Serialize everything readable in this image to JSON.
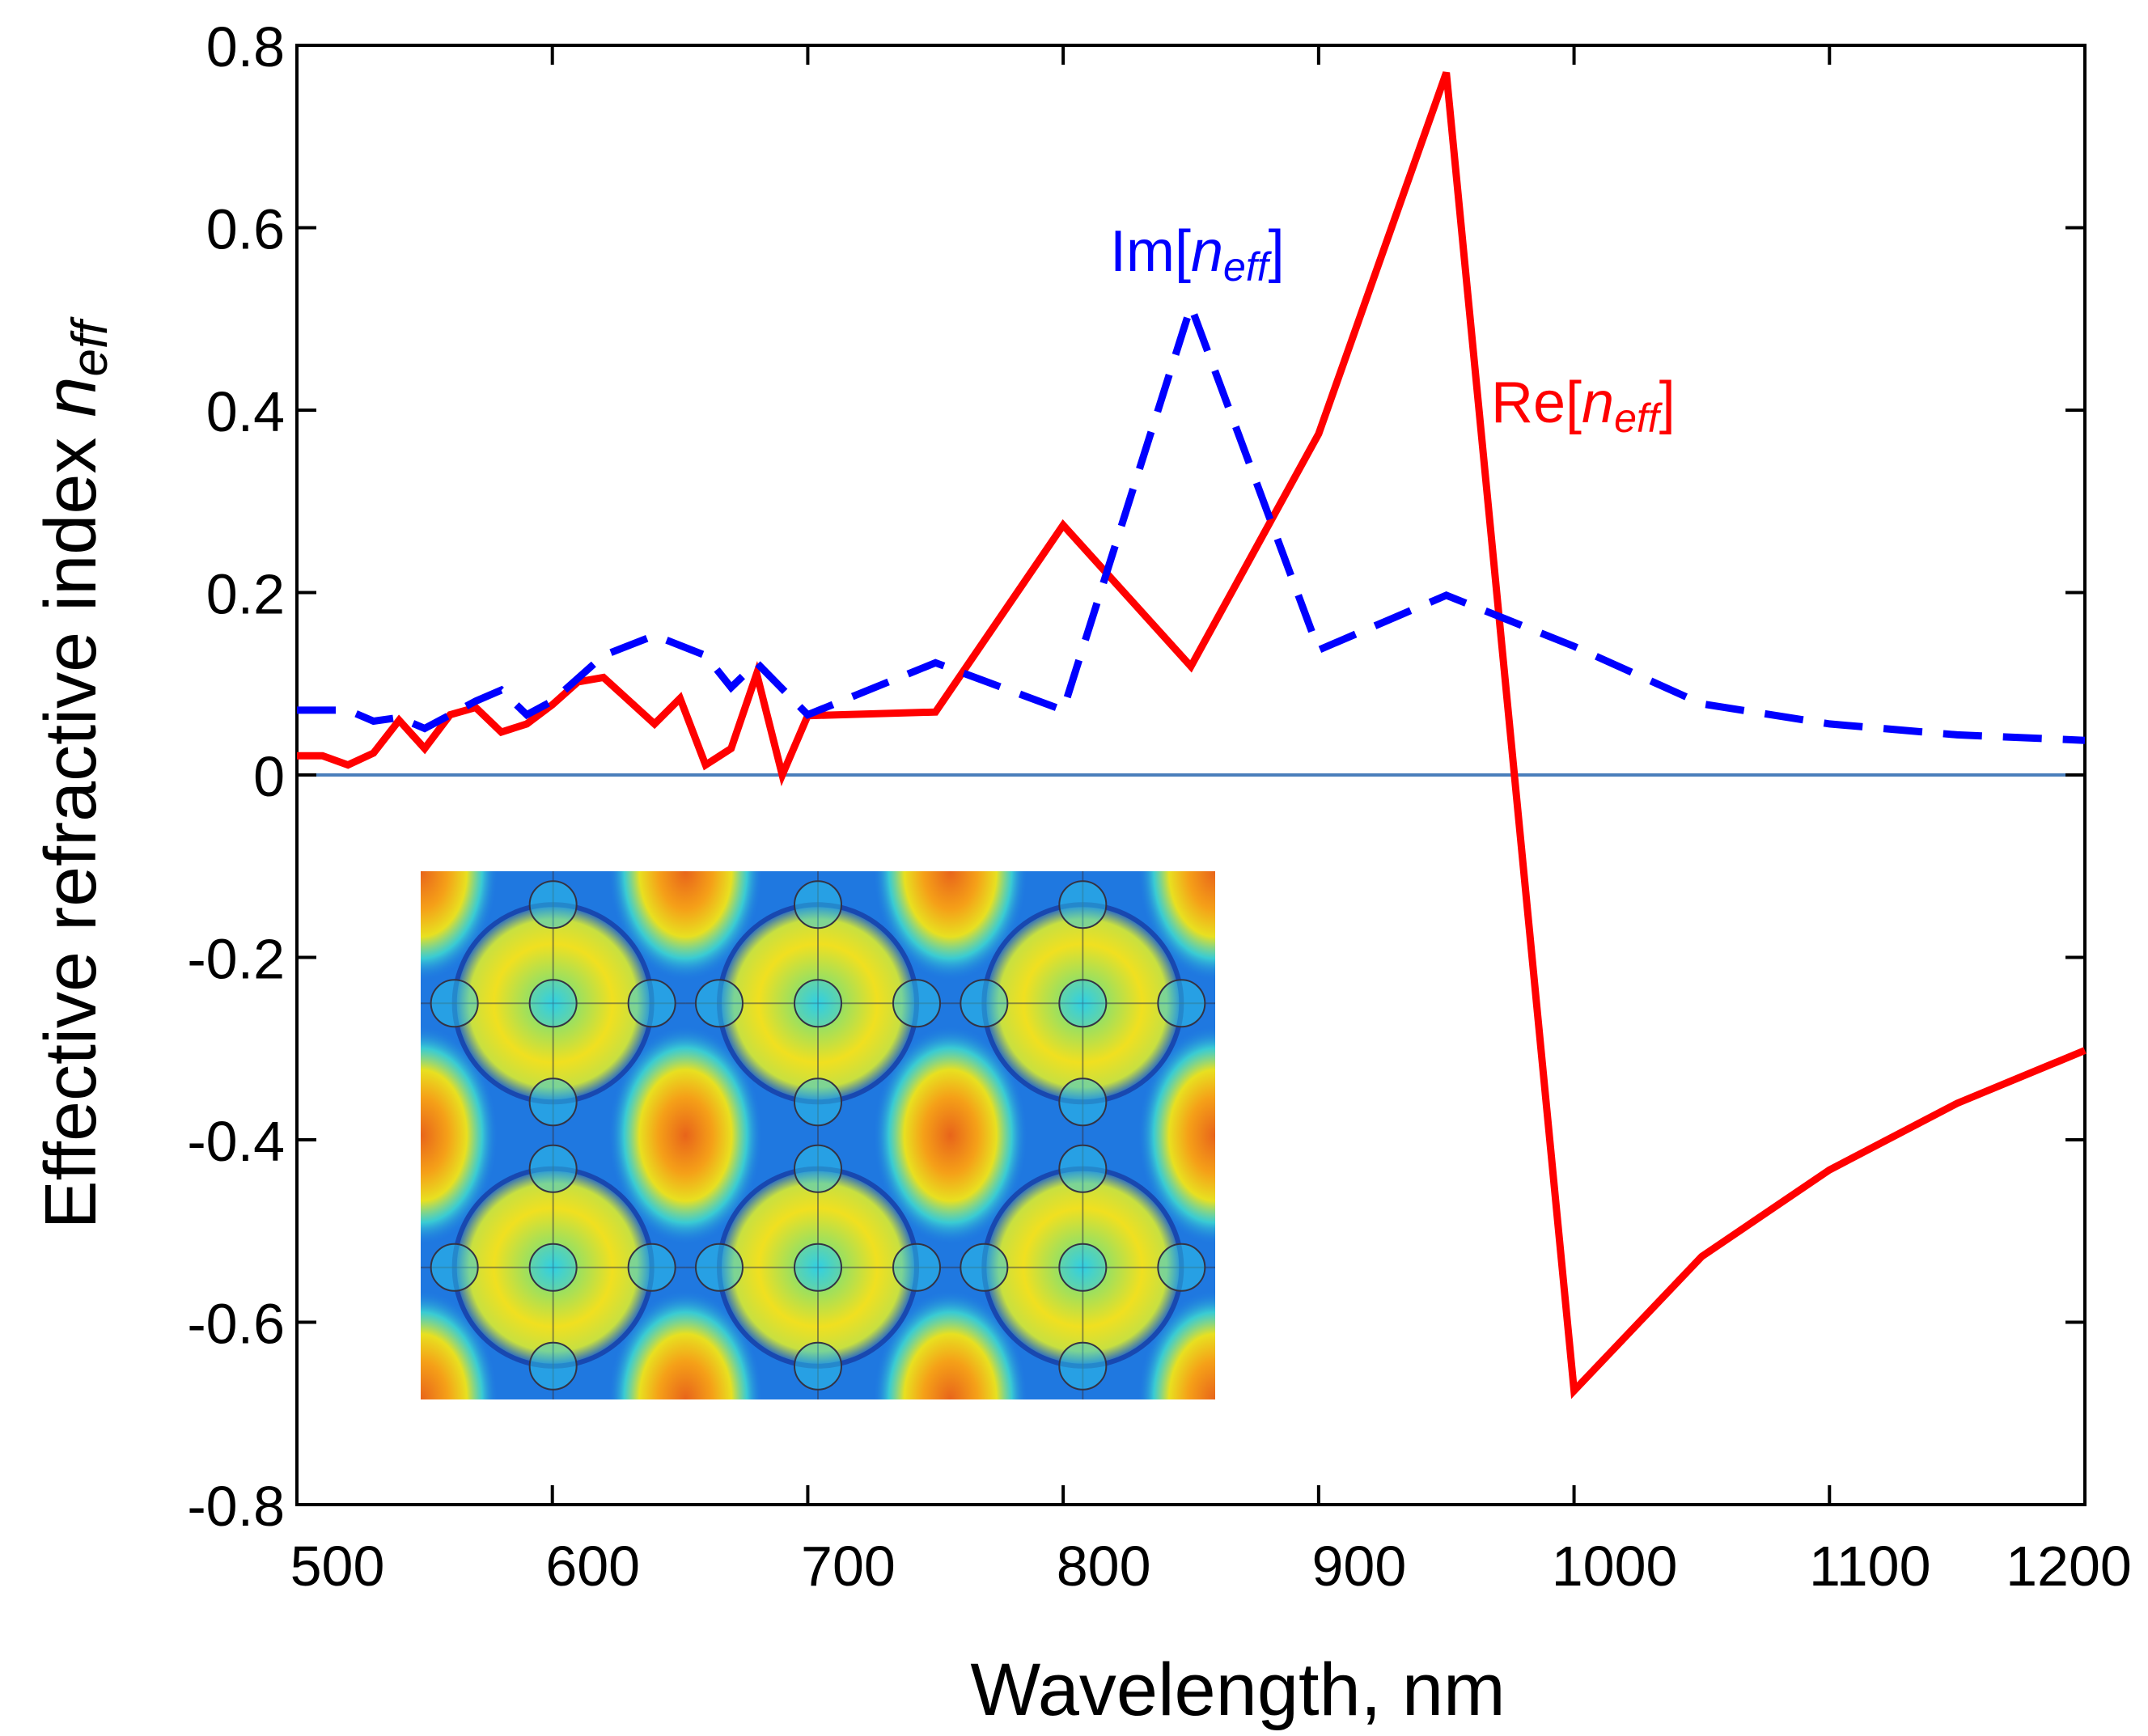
{
  "chart_data": {
    "type": "line",
    "title": "",
    "xlabel": "Wavelength, nm",
    "ylabel_main": "Effective refractive index ",
    "ylabel_symbol": "n",
    "ylabel_subscript": "eff",
    "xlim": [
      500,
      1200
    ],
    "ylim": [
      -0.8,
      0.8
    ],
    "xticks": [
      500,
      600,
      700,
      800,
      900,
      1000,
      1100,
      1200
    ],
    "xtick_labels": [
      "500",
      "600",
      "700",
      "800",
      "900",
      "1000",
      "1100",
      "1200"
    ],
    "yticks": [
      0.8,
      0.6,
      0.4,
      0.2,
      0,
      -0.2,
      -0.4,
      -0.6,
      -0.8
    ],
    "ytick_labels": [
      "0.8",
      "0.6",
      "0.4",
      "0.2",
      "0",
      "-0.2",
      "-0.4",
      "-0.6",
      "-0.8"
    ],
    "grid": false,
    "zero_line_color": "#4a7ebb",
    "series": [
      {
        "name": "Re[n_eff]",
        "label_prefix": "Re[",
        "label_symbol": "n",
        "label_sub": "eff",
        "label_suffix": "]",
        "color": "#ff0000",
        "style": "solid",
        "x": [
          500,
          510,
          520,
          530,
          540,
          550,
          560,
          570,
          580,
          590,
          600,
          610,
          620,
          640,
          650,
          660,
          670,
          680,
          690,
          700,
          750,
          800,
          850,
          900,
          950,
          1000,
          1050,
          1100,
          1150,
          1200
        ],
        "y": [
          0.021,
          0.021,
          0.011,
          0.024,
          0.06,
          0.029,
          0.066,
          0.074,
          0.047,
          0.056,
          0.077,
          0.102,
          0.107,
          0.056,
          0.084,
          0.011,
          0.029,
          0.111,
          0.0,
          0.065,
          0.069,
          0.274,
          0.119,
          0.374,
          0.77,
          -0.675,
          -0.528,
          -0.433,
          -0.36,
          -0.302
        ]
      },
      {
        "name": "Im[n_eff]",
        "label_prefix": "Im[",
        "label_symbol": "n",
        "label_sub": "eff",
        "label_suffix": "]",
        "color": "#0000ff",
        "style": "dashed",
        "x": [
          500,
          520,
          530,
          540,
          550,
          570,
          580,
          590,
          600,
          620,
          640,
          660,
          670,
          680,
          700,
          750,
          800,
          850,
          900,
          950,
          1000,
          1050,
          1100,
          1150,
          1200
        ],
        "y": [
          0.071,
          0.071,
          0.059,
          0.063,
          0.051,
          0.081,
          0.093,
          0.066,
          0.081,
          0.131,
          0.153,
          0.131,
          0.096,
          0.123,
          0.066,
          0.123,
          0.071,
          0.514,
          0.137,
          0.197,
          0.141,
          0.078,
          0.056,
          0.044,
          0.038
        ]
      }
    ],
    "inset": {
      "description_icon": "field-map-inset",
      "rows": 2,
      "cols": 3
    }
  }
}
